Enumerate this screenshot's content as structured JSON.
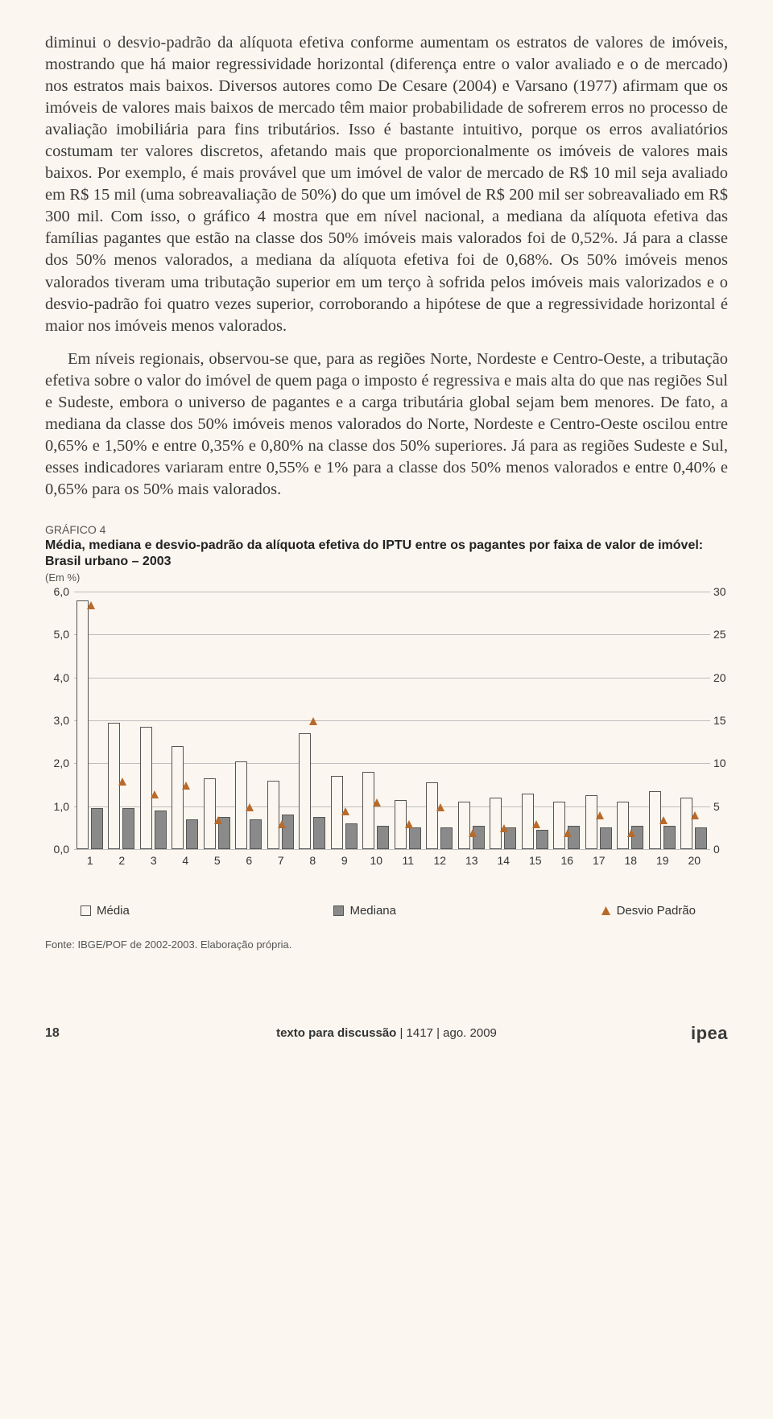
{
  "para1": "diminui o desvio-padrão da alíquota efetiva conforme aumentam os estratos de valores de imóveis, mostrando que há maior regressividade horizontal (diferença entre o valor avaliado e o de mercado) nos estratos mais baixos. Diversos autores como De Cesare (2004) e Varsano (1977) afirmam que os imóveis de valores mais baixos de mercado têm maior probabilidade de sofrerem erros no processo de avaliação imobiliária para fins tributários. Isso é bastante intuitivo, porque os erros avaliatórios costumam ter valores discretos, afetando mais que proporcionalmente os imóveis de valores mais baixos. Por exemplo, é mais provável que um imóvel de valor de mercado de R$ 10 mil seja avaliado em R$ 15 mil (uma sobreavaliação de 50%) do que um imóvel de R$ 200 mil ser sobreavaliado em R$ 300 mil. Com isso, o gráfico 4 mostra que em nível nacional, a mediana da alíquota efetiva das famílias pagantes que estão na classe dos 50% imóveis mais valorados foi de 0,52%. Já para a classe dos 50% menos valorados, a mediana da alíquota efetiva foi de 0,68%. Os 50% imóveis menos valorados tiveram uma tributação superior em um terço à sofrida pelos imóveis mais valorizados e o desvio-padrão foi quatro vezes superior, corroborando a hipótese de que a regressividade horizontal é maior nos imóveis menos valorados.",
  "para2": "Em níveis regionais, observou-se que, para as regiões Norte, Nordeste e Centro-Oeste, a tributação efetiva sobre o valor do imóvel de quem paga o imposto é regressiva e mais alta do que nas regiões Sul e Sudeste, embora o universo de pagantes e a carga tributária global sejam bem menores. De fato, a mediana da classe dos 50% imóveis menos valorados do Norte, Nordeste e Centro-Oeste oscilou entre 0,65% e 1,50% e entre 0,35% e 0,80% na classe dos 50% superiores. Já para as regiões Sudeste e Sul, esses indicadores variaram entre 0,55% e 1% para a classe dos 50% menos valorados e entre 0,40% e 0,65% para os 50% mais valorados.",
  "grafico": {
    "label": "GRÁFICO 4",
    "title": "Média, mediana e desvio-padrão da alíquota efetiva do IPTU entre os pagantes por faixa de valor de imóvel: Brasil urbano – 2003",
    "unit": "(Em %)",
    "left_axis": {
      "min": 0,
      "max": 6,
      "ticks": [
        "0,0",
        "1,0",
        "2,0",
        "3,0",
        "4,0",
        "5,0",
        "6,0"
      ]
    },
    "right_axis": {
      "min": 0,
      "max": 30,
      "ticks": [
        "0",
        "5",
        "10",
        "15",
        "20",
        "25",
        "30"
      ]
    },
    "categories": [
      "1",
      "2",
      "3",
      "4",
      "5",
      "6",
      "7",
      "8",
      "9",
      "10",
      "11",
      "12",
      "13",
      "14",
      "15",
      "16",
      "17",
      "18",
      "19",
      "20"
    ],
    "media": [
      5.8,
      2.95,
      2.85,
      2.4,
      1.65,
      2.05,
      1.6,
      2.7,
      1.7,
      1.8,
      1.15,
      1.55,
      1.1,
      1.2,
      1.3,
      1.1,
      1.25,
      1.1,
      1.35,
      1.2
    ],
    "mediana": [
      0.95,
      0.95,
      0.9,
      0.7,
      0.75,
      0.7,
      0.8,
      0.75,
      0.6,
      0.55,
      0.5,
      0.5,
      0.55,
      0.5,
      0.45,
      0.55,
      0.5,
      0.55,
      0.55,
      0.5
    ],
    "desvio": [
      28.5,
      8.0,
      6.5,
      7.5,
      3.5,
      5.0,
      3.0,
      15.0,
      4.5,
      5.5,
      3.0,
      5.0,
      2.0,
      2.5,
      3.0,
      2.0,
      4.0,
      2.0,
      3.5,
      4.0
    ],
    "colors": {
      "media_fill": "#fbf6ef",
      "mediana_fill": "#8a8a8a",
      "bar_border": "#555555",
      "marker": "#b86a2a",
      "grid": "#bdbdbd",
      "bg": "#fbf6ef"
    },
    "legend": {
      "media": "Média",
      "mediana": "Mediana",
      "desvio": "Desvio Padrão"
    },
    "fonte": "Fonte: IBGE/POF de 2002-2003. Elaboração própria."
  },
  "footer": {
    "page": "18",
    "center_bold": "texto para discussão",
    "center_rest": " | 1417 | ago. 2009",
    "brand": "ipea"
  }
}
